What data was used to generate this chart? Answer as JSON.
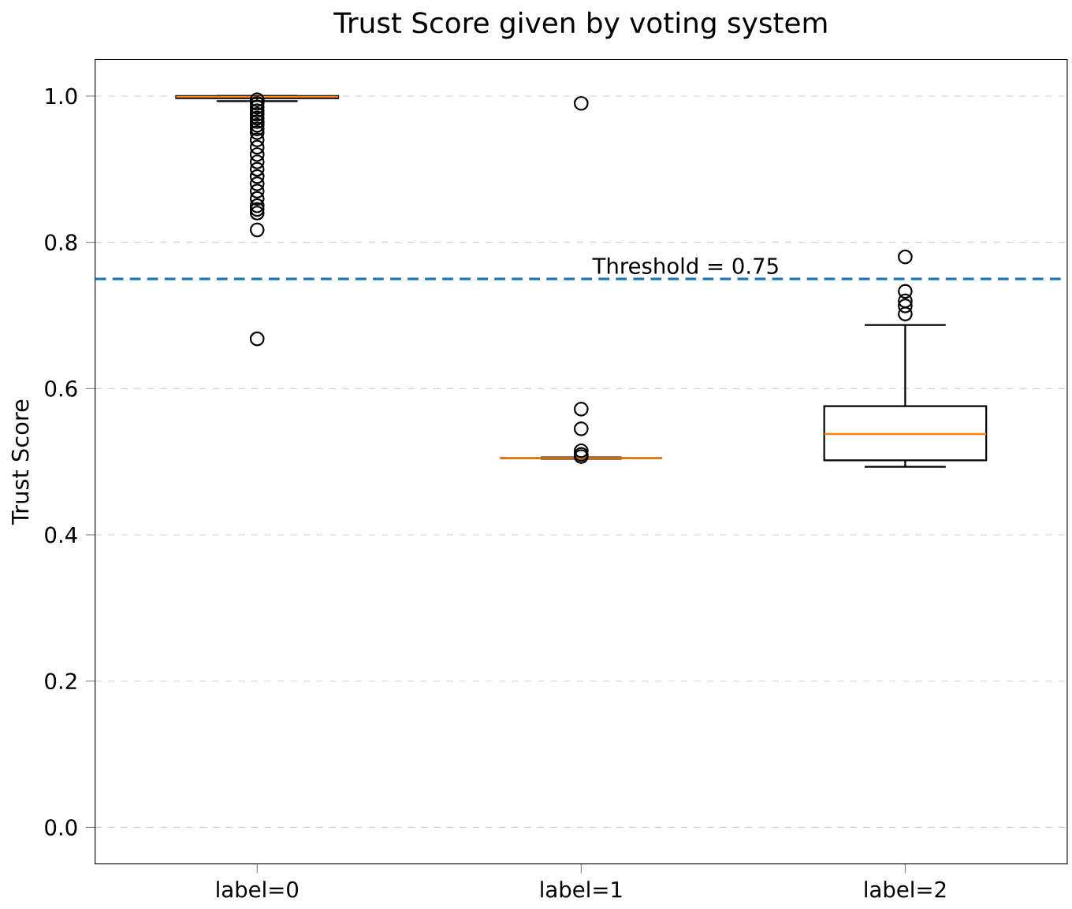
{
  "chart_data": {
    "type": "box",
    "title": "Trust Score given by voting system",
    "ylabel": "Trust Score",
    "categories": [
      "label=0",
      "label=1",
      "label=2"
    ],
    "boxes": [
      {
        "low": 0.993,
        "q1": 0.997,
        "median": 0.999,
        "q3": 1.0,
        "high": 1.0,
        "outliers": [
          0.995,
          0.99,
          0.985,
          0.98,
          0.975,
          0.97,
          0.965,
          0.96,
          0.955,
          0.95,
          0.94,
          0.93,
          0.92,
          0.91,
          0.9,
          0.89,
          0.88,
          0.87,
          0.86,
          0.85,
          0.845,
          0.84,
          0.817,
          0.668
        ]
      },
      {
        "low": 0.504,
        "q1": 0.505,
        "median": 0.505,
        "q3": 0.505,
        "high": 0.506,
        "outliers": [
          0.99,
          0.572,
          0.545,
          0.515,
          0.51,
          0.507
        ]
      },
      {
        "low": 0.493,
        "q1": 0.502,
        "median": 0.538,
        "q3": 0.576,
        "high": 0.687,
        "outliers": [
          0.78,
          0.733,
          0.72,
          0.713,
          0.702
        ]
      }
    ],
    "color": "#000000",
    "ylim": [
      -0.05,
      1.05
    ],
    "yticks": [
      {
        "value": 0,
        "label": "0.0"
      },
      {
        "value": 0.2,
        "label": "0.2"
      },
      {
        "value": 0.4,
        "label": "0.4"
      },
      {
        "value": 0.6,
        "label": "0.6"
      },
      {
        "value": 0.8,
        "label": "0.8"
      },
      {
        "value": 1,
        "label": "1.0"
      }
    ],
    "grid": "y",
    "marker": "circle",
    "ref_lines": [
      {
        "axis": "y",
        "value": 0.75,
        "label": "Threshold = 0.75",
        "color": "#1f77b4",
        "line_style": "dashed"
      }
    ]
  }
}
